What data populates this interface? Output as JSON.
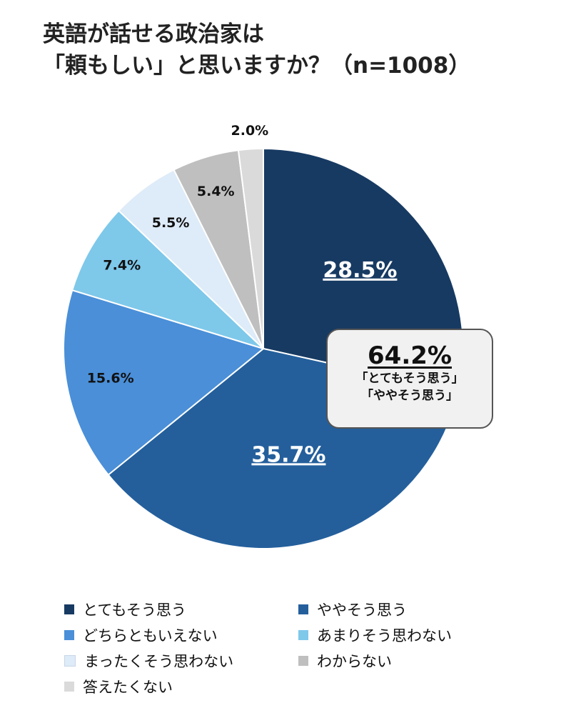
{
  "title": {
    "line1": "英語が話せる政治家は",
    "line2": "「頼もしい」と思いますか？（n=1008）"
  },
  "callout": {
    "value": "64.2%",
    "line1": "「とてもそう思う」",
    "line2": "「ややそう思う」"
  },
  "chart_data": {
    "type": "pie",
    "start": "12 o'clock, clockwise",
    "categories": [
      "とてもそう思う",
      "ややそう思う",
      "どちらともいえない",
      "あまりそう思わない",
      "まったくそう思わない",
      "わからない",
      "答えたくない"
    ],
    "values": [
      28.5,
      35.7,
      15.6,
      7.4,
      5.5,
      5.4,
      2.0
    ],
    "labels": [
      "28.5%",
      "35.7%",
      "15.6%",
      "7.4%",
      "5.5%",
      "5.4%",
      "2.0%"
    ],
    "colors": [
      "#173a62",
      "#245f9c",
      "#4a8fd8",
      "#7ec8ea",
      "#deebf8",
      "#bfbfbf",
      "#dadada"
    ],
    "label_colors": [
      "#ffffff",
      "#ffffff",
      "#111111",
      "#111111",
      "#111111",
      "#111111",
      "#111111"
    ],
    "label_emphasis": [
      true,
      true,
      false,
      false,
      false,
      false,
      false
    ],
    "legend_position": "bottom"
  },
  "legend": [
    {
      "label": "とてもそう思う",
      "color": "#173a62"
    },
    {
      "label": "ややそう思う",
      "color": "#245f9c"
    },
    {
      "label": "どちらともいえない",
      "color": "#4a8fd8"
    },
    {
      "label": "あまりそう思わない",
      "color": "#7ec8ea"
    },
    {
      "label": "まったくそう思わない",
      "color": "#deebf8"
    },
    {
      "label": "わからない",
      "color": "#bfbfbf"
    },
    {
      "label": "答えたくない",
      "color": "#dadada"
    }
  ]
}
